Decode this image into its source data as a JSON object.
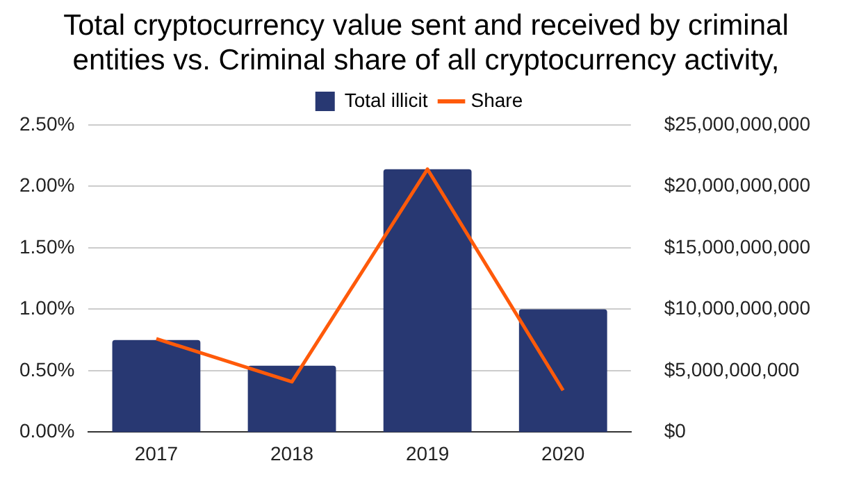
{
  "chart_data": {
    "type": "bar",
    "title": "Total cryptocurrency value sent and received by criminal entities vs. Criminal share of all cryptocurrency activity,",
    "categories": [
      "2017",
      "2018",
      "2019",
      "2020"
    ],
    "series": [
      {
        "name": "Total illicit",
        "axis": "y2",
        "color": "#283872",
        "values": [
          7500000000,
          5400000000,
          21400000000,
          10000000000
        ]
      },
      {
        "name": "Share",
        "type": "line",
        "axis": "y",
        "color": "#ff5a0a",
        "values": [
          0.76,
          0.41,
          2.14,
          0.34
        ]
      }
    ],
    "ylim": [
      0,
      2.5
    ],
    "yticks": [
      {
        "value": 0,
        "label": "0.00%"
      },
      {
        "value": 0.5,
        "label": "0.50%"
      },
      {
        "value": 1,
        "label": "1.00%"
      },
      {
        "value": 1.5,
        "label": "1.50%"
      },
      {
        "value": 2,
        "label": "2.00%"
      },
      {
        "value": 2.5,
        "label": "2.50%"
      }
    ],
    "y2lim": [
      0,
      25000000000
    ],
    "y2ticks": [
      {
        "value": 0,
        "label": "$0"
      },
      {
        "value": 5000000000,
        "label": "$5,000,000,000"
      },
      {
        "value": 10000000000,
        "label": "$10,000,000,000"
      },
      {
        "value": 15000000000,
        "label": "$15,000,000,000"
      },
      {
        "value": 20000000000,
        "label": "$20,000,000,000"
      },
      {
        "value": 25000000000,
        "label": "$25,000,000,000"
      }
    ],
    "grid": "y",
    "legend": "top",
    "marker": "none"
  }
}
